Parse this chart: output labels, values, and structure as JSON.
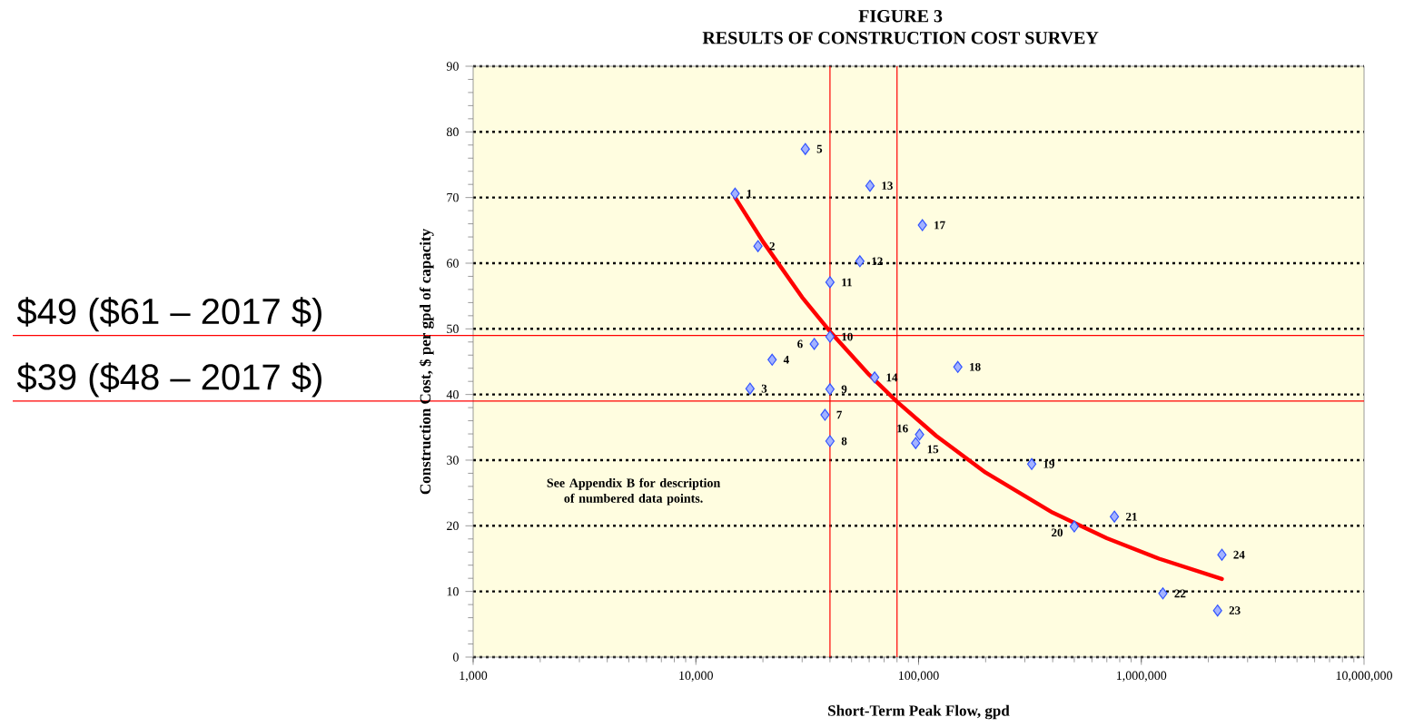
{
  "chart_data": {
    "type": "scatter",
    "title": "FIGURE 3",
    "subtitle": "RESULTS OF CONSTRUCTION COST SURVEY",
    "xlabel": "Short-Term Peak Flow, gpd",
    "ylabel": "Construction Cost, $ per gpd of capacity",
    "log": "x",
    "grid": "y",
    "xlim": [
      1000,
      10000000
    ],
    "xticks": [
      {
        "value": 1000,
        "label": "1,000"
      },
      {
        "value": 10000,
        "label": "10,000"
      },
      {
        "value": 100000,
        "label": "100,000"
      },
      {
        "value": 1000000,
        "label": "1,000,000"
      },
      {
        "value": 10000000,
        "label": "10,000,000"
      }
    ],
    "ylim": [
      0,
      90
    ],
    "yticks": [
      0,
      10,
      20,
      30,
      40,
      50,
      60,
      70,
      80,
      90
    ],
    "series": [
      {
        "color": "#3355ff",
        "marker": "diamond",
        "x": [
          15000,
          19000,
          17500,
          22000,
          31000,
          34000,
          38000,
          40000,
          40000,
          40000,
          40000,
          54500,
          60500,
          63500,
          97000,
          101000,
          104000,
          150000,
          322000,
          500000,
          757000,
          1250000,
          2200000,
          2300000
        ],
        "values": [
          70.6,
          62.6,
          40.9,
          45.3,
          77.4,
          47.7,
          36.9,
          32.9,
          40.8,
          48.8,
          57.1,
          60.3,
          71.8,
          42.6,
          32.6,
          33.9,
          65.8,
          44.2,
          29.4,
          19.9,
          21.4,
          9.7,
          7.1,
          15.6
        ]
      },
      {
        "type": "line",
        "color": "#ff0000",
        "marker": "none",
        "x": [
          15000,
          20000,
          30000,
          40000,
          60000,
          80000,
          120000,
          200000,
          400000,
          700000,
          1200000,
          2300000
        ],
        "values": [
          70,
          63.3,
          54.8,
          49.6,
          43.0,
          38.9,
          33.7,
          28.1,
          22.0,
          18.1,
          15.0,
          11.9
        ]
      }
    ],
    "ref_lines": [
      {
        "axis": "y",
        "value": 49,
        "label": "$49 ($61 – 2017 $)",
        "color": "#ff0000"
      },
      {
        "axis": "y",
        "value": 39,
        "label": "$39 ($48 – 2017 $)",
        "color": "#ff0000"
      },
      {
        "axis": "x",
        "value": 40000,
        "color": "#ff0000"
      },
      {
        "axis": "x",
        "value": 80000,
        "color": "#ff0000"
      }
    ],
    "annotations": [
      {
        "text": "1",
        "x": 15000,
        "y": 70.6
      },
      {
        "text": "2",
        "x": 19000,
        "y": 62.6
      },
      {
        "text": "3",
        "x": 17500,
        "y": 40.9
      },
      {
        "text": "4",
        "x": 22000,
        "y": 45.3
      },
      {
        "text": "5",
        "x": 31000,
        "y": 77.4
      },
      {
        "text": "6",
        "x": 34000,
        "y": 47.7
      },
      {
        "text": "7",
        "x": 38000,
        "y": 36.9
      },
      {
        "text": "8",
        "x": 40000,
        "y": 32.9
      },
      {
        "text": "9",
        "x": 40000,
        "y": 40.8
      },
      {
        "text": "10",
        "x": 40000,
        "y": 48.8
      },
      {
        "text": "11",
        "x": 40000,
        "y": 57.1
      },
      {
        "text": "12",
        "x": 54500,
        "y": 60.3
      },
      {
        "text": "13",
        "x": 60500,
        "y": 71.8
      },
      {
        "text": "14",
        "x": 63500,
        "y": 42.6
      },
      {
        "text": "15",
        "x": 97000,
        "y": 32.6
      },
      {
        "text": "16",
        "x": 101000,
        "y": 33.9
      },
      {
        "text": "17",
        "x": 104000,
        "y": 65.8
      },
      {
        "text": "18",
        "x": 150000,
        "y": 44.2
      },
      {
        "text": "19",
        "x": 322000,
        "y": 29.4
      },
      {
        "text": "20",
        "x": 500000,
        "y": 19.9
      },
      {
        "text": "21",
        "x": 757000,
        "y": 21.4
      },
      {
        "text": "22",
        "x": 1250000,
        "y": 9.7
      },
      {
        "text": "23",
        "x": 2200000,
        "y": 7.1
      },
      {
        "text": "24",
        "x": 2300000,
        "y": 15.6
      },
      "See Appendix B for description\nof numbered data points."
    ]
  }
}
